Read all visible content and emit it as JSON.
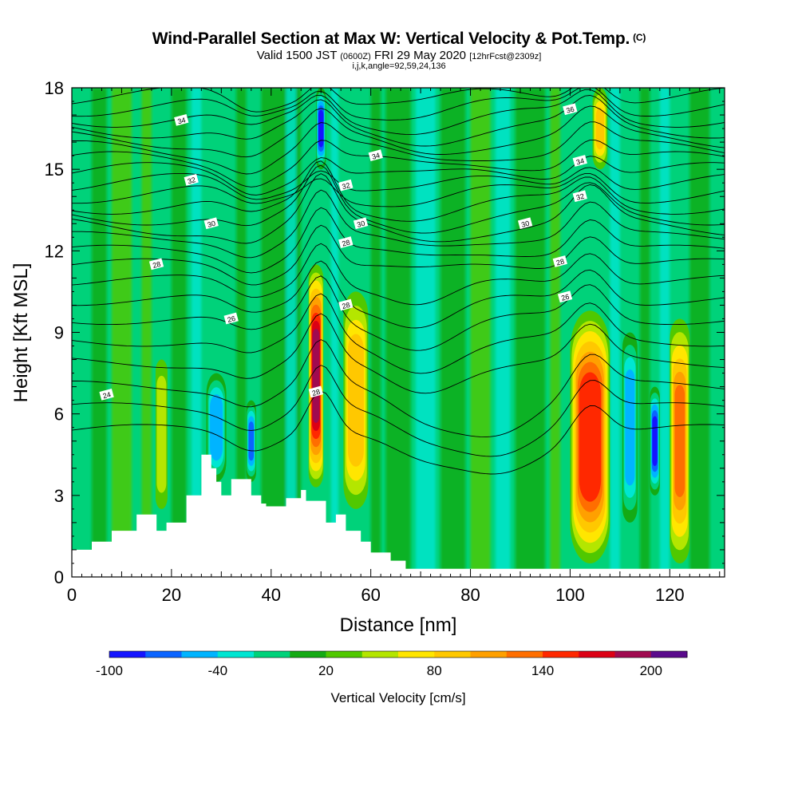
{
  "chart_data": {
    "type": "heatmap",
    "title": "Wind-Parallel Section at Max W: Vertical Velocity & Pot.Temp.",
    "title_mark": "(C)",
    "subtitle_main": "Valid 1500 JST",
    "subtitle_utc": "(0600Z)",
    "subtitle_date": "FRI 29 May 2020",
    "subtitle_fcst": "[12hrFcst@2309z]",
    "params": "i,j,k,angle=92,59,24,136",
    "xlabel": "Distance [nm]",
    "ylabel": "Height [Kft MSL]",
    "xlim": [
      0,
      131
    ],
    "ylim": [
      0,
      18
    ],
    "xticks": [
      0,
      20,
      40,
      60,
      80,
      100,
      120
    ],
    "yticks": [
      0,
      3,
      6,
      9,
      12,
      15,
      18
    ],
    "colorbar": {
      "title": "Vertical Velocity [cm/s]",
      "min": -100,
      "max": 220,
      "step": 20,
      "tick_values": [
        -100,
        -40,
        20,
        80,
        140,
        200
      ],
      "colors": [
        "#1414ff",
        "#0a64ff",
        "#00b4ff",
        "#00e6d2",
        "#00d27a",
        "#14aa14",
        "#50c800",
        "#b4e600",
        "#ffe600",
        "#ffc800",
        "#ffa000",
        "#ff6e00",
        "#ff2800",
        "#dc0014",
        "#a00a50",
        "#5a0a8c"
      ]
    },
    "background_value_color": "#00d27a",
    "updrafts": [
      {
        "x_center": 49,
        "half_width": 1.5,
        "y_bottom": 3.3,
        "y_top": 11.5,
        "peak_w": 180
      },
      {
        "x_center": 57,
        "half_width": 2.5,
        "y_bottom": 2.5,
        "y_top": 10.5,
        "peak_w": 90
      },
      {
        "x_center": 104,
        "half_width": 4,
        "y_bottom": 0.5,
        "y_top": 9.8,
        "peak_w": 150
      },
      {
        "x_center": 122,
        "half_width": 2,
        "y_bottom": 0.5,
        "y_top": 9.5,
        "peak_w": 120
      },
      {
        "x_center": 106,
        "half_width": 1.5,
        "y_bottom": 15,
        "y_top": 18,
        "peak_w": 80
      },
      {
        "x_center": 18,
        "half_width": 1.2,
        "y_bottom": 2.5,
        "y_top": 8,
        "peak_w": 50
      }
    ],
    "downdrafts": [
      {
        "x_center": 29,
        "half_width": 2,
        "y_bottom": 3.5,
        "y_top": 7.5,
        "peak_w": -50
      },
      {
        "x_center": 36,
        "half_width": 1,
        "y_bottom": 3.5,
        "y_top": 6.5,
        "peak_w": -60
      },
      {
        "x_center": 50,
        "half_width": 1,
        "y_bottom": 15,
        "y_top": 18,
        "peak_w": -80
      },
      {
        "x_center": 112,
        "half_width": 1.5,
        "y_bottom": 2,
        "y_top": 9,
        "peak_w": -50
      },
      {
        "x_center": 117,
        "half_width": 1,
        "y_bottom": 3,
        "y_top": 7,
        "peak_w": -80
      }
    ],
    "terrain": {
      "x": [
        0,
        4,
        4,
        8,
        8,
        13,
        13,
        17,
        17,
        19,
        19,
        23,
        23,
        26,
        26,
        28,
        28,
        29,
        29,
        30,
        30,
        32,
        32,
        36,
        36,
        38,
        38,
        39,
        39,
        43,
        43,
        46,
        46,
        47,
        47,
        51,
        51,
        53,
        53,
        55,
        55,
        58,
        58,
        60,
        60,
        64,
        64,
        67,
        67,
        70,
        70,
        131
      ],
      "y": [
        1.0,
        1.0,
        1.3,
        1.3,
        1.7,
        1.7,
        2.3,
        2.3,
        1.7,
        1.7,
        2.0,
        2.0,
        3.0,
        3.0,
        4.5,
        4.5,
        4.0,
        4.0,
        3.5,
        3.5,
        3.0,
        3.0,
        3.6,
        3.6,
        3.0,
        3.0,
        2.7,
        2.7,
        2.6,
        2.6,
        2.9,
        2.9,
        3.2,
        3.2,
        2.8,
        2.8,
        2.0,
        2.0,
        2.3,
        2.3,
        1.7,
        1.7,
        1.3,
        1.3,
        0.9,
        0.9,
        0.6,
        0.6,
        0.3,
        0.3,
        0.3,
        0.3
      ]
    },
    "isentropes": {
      "levels": [
        24,
        26,
        28,
        30,
        32,
        34,
        36
      ],
      "labels": [
        {
          "text": "24",
          "x": 7,
          "y": 6.7
        },
        {
          "text": "26",
          "x": 32,
          "y": 9.5
        },
        {
          "text": "28",
          "x": 17,
          "y": 11.5
        },
        {
          "text": "28",
          "x": 55,
          "y": 10.0
        },
        {
          "text": "28",
          "x": 55,
          "y": 12.3
        },
        {
          "text": "28",
          "x": 49,
          "y": 6.8
        },
        {
          "text": "28",
          "x": 98,
          "y": 11.6
        },
        {
          "text": "26",
          "x": 99,
          "y": 10.3
        },
        {
          "text": "30",
          "x": 28,
          "y": 13.0
        },
        {
          "text": "30",
          "x": 58,
          "y": 13.0
        },
        {
          "text": "30",
          "x": 91,
          "y": 13.0
        },
        {
          "text": "32",
          "x": 24,
          "y": 14.6
        },
        {
          "text": "32",
          "x": 55,
          "y": 14.4
        },
        {
          "text": "32",
          "x": 102,
          "y": 14.0
        },
        {
          "text": "34",
          "x": 22,
          "y": 16.8
        },
        {
          "text": "34",
          "x": 61,
          "y": 15.5
        },
        {
          "text": "34",
          "x": 102,
          "y": 15.3
        },
        {
          "text": "36",
          "x": 100,
          "y": 17.2
        }
      ]
    }
  }
}
